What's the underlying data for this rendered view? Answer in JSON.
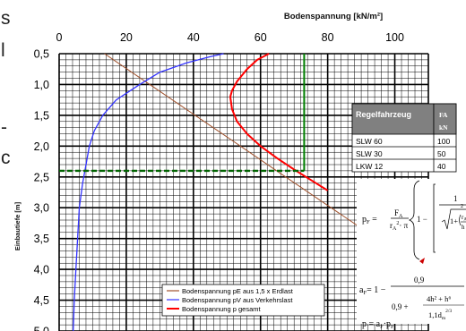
{
  "page": {
    "cut_margin_glyphs": [
      "s",
      "l",
      "-",
      "c"
    ]
  },
  "chart_data": {
    "type": "line",
    "title": "",
    "x_axis_title": "Bodenspannung [kN/m²]",
    "y_axis_title": "Einbautiefe [m]",
    "xlim": [
      0,
      110
    ],
    "ylim": [
      0.5,
      5.0
    ],
    "x_ticks": [
      "0",
      "20",
      "40",
      "60",
      "80",
      "100"
    ],
    "x_tick_values": [
      0,
      20,
      40,
      60,
      80,
      100
    ],
    "y_ticks": [
      "0,5",
      "1,0",
      "1,5",
      "2,0",
      "2,5",
      "3,0",
      "3,5",
      "4,0",
      "4,5",
      "5,0"
    ],
    "y_tick_values": [
      0.5,
      1.0,
      1.5,
      2.0,
      2.5,
      3.0,
      3.5,
      4.0,
      4.5,
      5.0
    ],
    "axis_position": "top",
    "y_reversed": true,
    "grid": true,
    "legend_position": "bottom-center",
    "series": [
      {
        "name": "Bodenspannung pE aus 1,5 x Erdlast",
        "color": "#a0522d",
        "points": [
          [
            13.5,
            0.5
          ],
          [
            27,
            1.0
          ],
          [
            40.5,
            1.5
          ],
          [
            54,
            2.0
          ],
          [
            67.5,
            2.5
          ],
          [
            81,
            3.0
          ],
          [
            90,
            3.33
          ]
        ]
      },
      {
        "name": "Bodenspannung pV aus Verkehrslast",
        "color": "#3333ff",
        "points": [
          [
            49,
            0.5
          ],
          [
            45,
            0.55
          ],
          [
            38,
            0.65
          ],
          [
            30,
            0.8
          ],
          [
            24,
            1.0
          ],
          [
            17,
            1.25
          ],
          [
            13,
            1.5
          ],
          [
            10.5,
            1.75
          ],
          [
            9,
            2.0
          ],
          [
            8,
            2.3
          ],
          [
            7,
            2.6
          ],
          [
            6,
            3.0
          ],
          [
            5.5,
            3.5
          ],
          [
            5,
            4.0
          ],
          [
            4.5,
            4.5
          ],
          [
            4.2,
            5.0
          ]
        ]
      },
      {
        "name": "Bodenspannung p gesamt",
        "color": "#ff0000",
        "points": [
          [
            62.5,
            0.5
          ],
          [
            59,
            0.6
          ],
          [
            56,
            0.75
          ],
          [
            53,
            0.95
          ],
          [
            51.5,
            1.1
          ],
          [
            51,
            1.2
          ],
          [
            51.5,
            1.4
          ],
          [
            53,
            1.6
          ],
          [
            56,
            1.8
          ],
          [
            60,
            2.0
          ],
          [
            65,
            2.2
          ],
          [
            70,
            2.38
          ],
          [
            75,
            2.55
          ],
          [
            80,
            2.72
          ]
        ]
      }
    ],
    "reference_lines": [
      {
        "orientation": "vertical",
        "x": 73,
        "y_range": [
          0.5,
          2.4
        ],
        "color": "#008000",
        "style": "solid"
      },
      {
        "orientation": "horizontal",
        "y": 2.4,
        "x_range": [
          0,
          73
        ],
        "color": "#006400",
        "style": "dashed"
      }
    ],
    "inset_table": {
      "header": [
        "Regelfahrzeug",
        "FA",
        "kN"
      ],
      "rows": [
        [
          "SLW 60",
          "100"
        ],
        [
          "SLW 30",
          "50"
        ],
        [
          "LKW 12",
          "40"
        ]
      ]
    },
    "formulas": {
      "pF_lhs": "p",
      "pF_lhs_sub": "F",
      "pF_frac_num": "F",
      "pF_frac_num_sub": "A",
      "pF_frac_den": "r",
      "pF_frac_den_sub": "A",
      "pF_frac_den_sup": "2",
      "pF_pi": "· π",
      "pF_one": "1 −",
      "pF_inner_num": "1",
      "pF_inner_one": "1+",
      "pF_rA": "r",
      "pF_rA_sub": "A",
      "pF_h": "h",
      "pF_exp": "2",
      "aF_lhs": "a",
      "aF_lhs_sub": "F",
      "aF_eq": "= 1 −",
      "aF_num": "0,9",
      "aF_den_a": "0,9 +",
      "aF_den_num": "4h² + h⁶",
      "aF_den_den": "1,1d",
      "aF_den_den_sub": "m",
      "aF_den_den_sup": "2/3",
      "p_line": "p = a",
      "p_line_sub1": "F",
      "p_line_mid": "·p",
      "p_line_sub2": "F"
    }
  }
}
